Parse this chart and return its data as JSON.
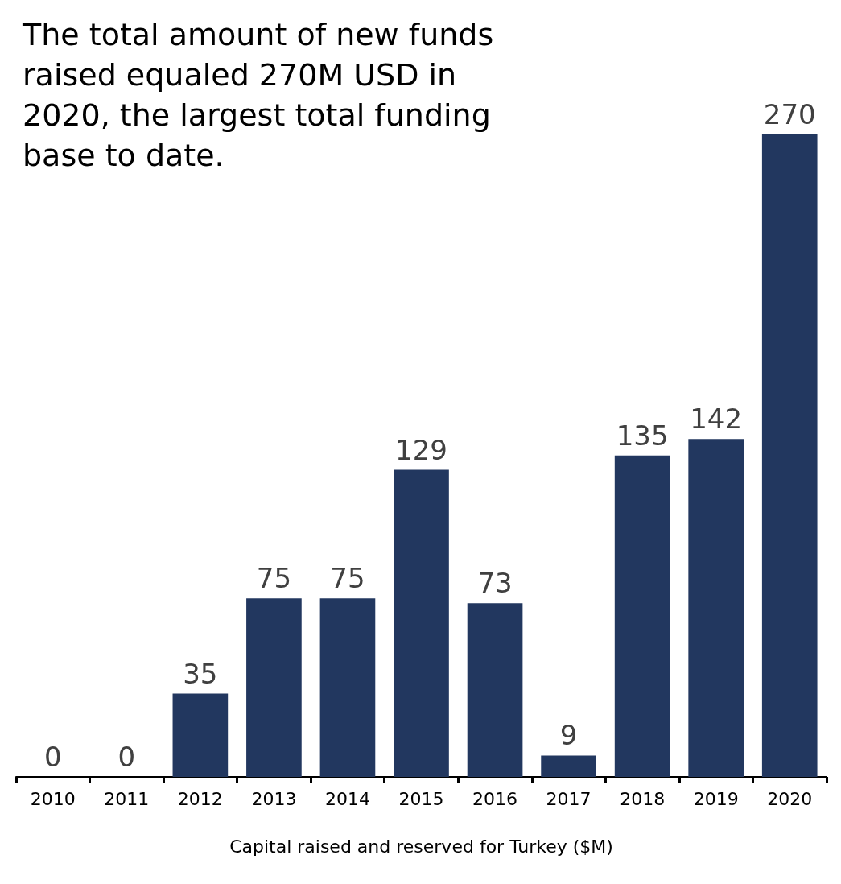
{
  "chart_data": {
    "type": "bar",
    "xlabel": "Capital raised and reserved for Turkey ($M)",
    "annotations": [
      "The total amount of new funds raised equaled 270M USD in 2020, the largest total funding base to date."
    ],
    "categories": [
      "2010",
      "2011",
      "2012",
      "2013",
      "2014",
      "2015",
      "2016",
      "2017",
      "2018",
      "2019",
      "2020"
    ],
    "values": [
      0,
      0,
      35,
      75,
      75,
      129,
      73,
      9,
      135,
      142,
      270
    ],
    "color": "#22375f",
    "data_labels": true,
    "grid": false
  }
}
